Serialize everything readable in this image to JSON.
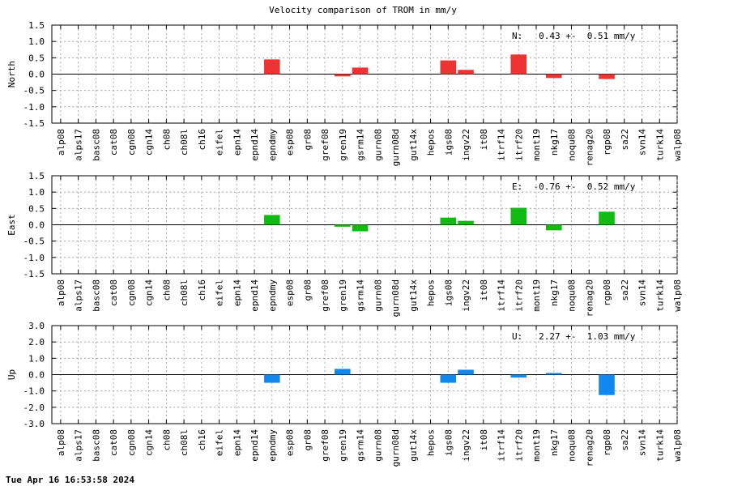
{
  "chart_data": {
    "type": "bar",
    "title": "Velocity comparison of TROM in mm/y",
    "categories": [
      "alp08",
      "alps17",
      "basc08",
      "cat08",
      "cgn08",
      "cgn14",
      "ch08",
      "ch08l",
      "ch16",
      "eifel",
      "epn14",
      "epnd14",
      "epndmy",
      "esp08",
      "gr08",
      "gref08",
      "gren19",
      "gsrm14",
      "gurn08",
      "gurn08d",
      "gut14x",
      "hepos",
      "igs08",
      "ingv22",
      "it08",
      "itrf14",
      "itrf20",
      "mont19",
      "nkg17",
      "noqu08",
      "renag20",
      "rgp08",
      "sa22",
      "svn14",
      "turk14",
      "walp08"
    ],
    "panels": [
      {
        "ylabel": "North",
        "ylim": [
          -1.5,
          1.5
        ],
        "yticks": [
          "-1.5",
          "-1.0",
          "-0.5",
          "0.0",
          "0.5",
          "1.0",
          "1.5"
        ],
        "color": "#ee3333",
        "annotation": "N:   0.43 +-  0.51 mm/y",
        "values": [
          0,
          0,
          0,
          0,
          0,
          0,
          0,
          0,
          0,
          0,
          0,
          0,
          0.45,
          0,
          0,
          0,
          -0.07,
          0.2,
          0,
          0,
          0,
          0,
          0.42,
          0.13,
          0,
          0,
          0.6,
          0,
          -0.12,
          0,
          0,
          -0.15,
          0,
          0,
          0,
          0
        ]
      },
      {
        "ylabel": "East",
        "ylim": [
          -1.5,
          1.5
        ],
        "yticks": [
          "-1.5",
          "-1.0",
          "-0.5",
          "0.0",
          "0.5",
          "1.0",
          "1.5"
        ],
        "color": "#11bb11",
        "annotation": "E:  -0.76 +-  0.52 mm/y",
        "values": [
          0,
          0,
          0,
          0,
          0,
          0,
          0,
          0,
          0,
          0,
          0,
          0,
          0.3,
          0,
          0,
          0,
          -0.06,
          -0.2,
          0,
          0,
          0,
          0,
          0.22,
          0.12,
          0,
          0,
          0.52,
          0,
          -0.17,
          0,
          0,
          0.4,
          0,
          0,
          0,
          0
        ]
      },
      {
        "ylabel": "Up",
        "ylim": [
          -3.0,
          3.0
        ],
        "yticks": [
          "-3.0",
          "-2.0",
          "-1.0",
          "0.0",
          "1.0",
          "2.0",
          "3.0"
        ],
        "color": "#1188ee",
        "annotation": "U:   2.27 +-  1.03 mm/y",
        "values": [
          0,
          0,
          0,
          0,
          0,
          0,
          0,
          0,
          0,
          0,
          0,
          0,
          -0.5,
          0,
          0,
          0,
          0.35,
          0,
          0,
          0,
          0,
          0,
          -0.5,
          0.3,
          0,
          0,
          -0.18,
          0,
          0.1,
          0,
          0,
          -1.25,
          0,
          0,
          0,
          0
        ]
      }
    ],
    "grid": true
  },
  "footer": {
    "timestamp": "Tue Apr 16 16:53:58 2024"
  }
}
